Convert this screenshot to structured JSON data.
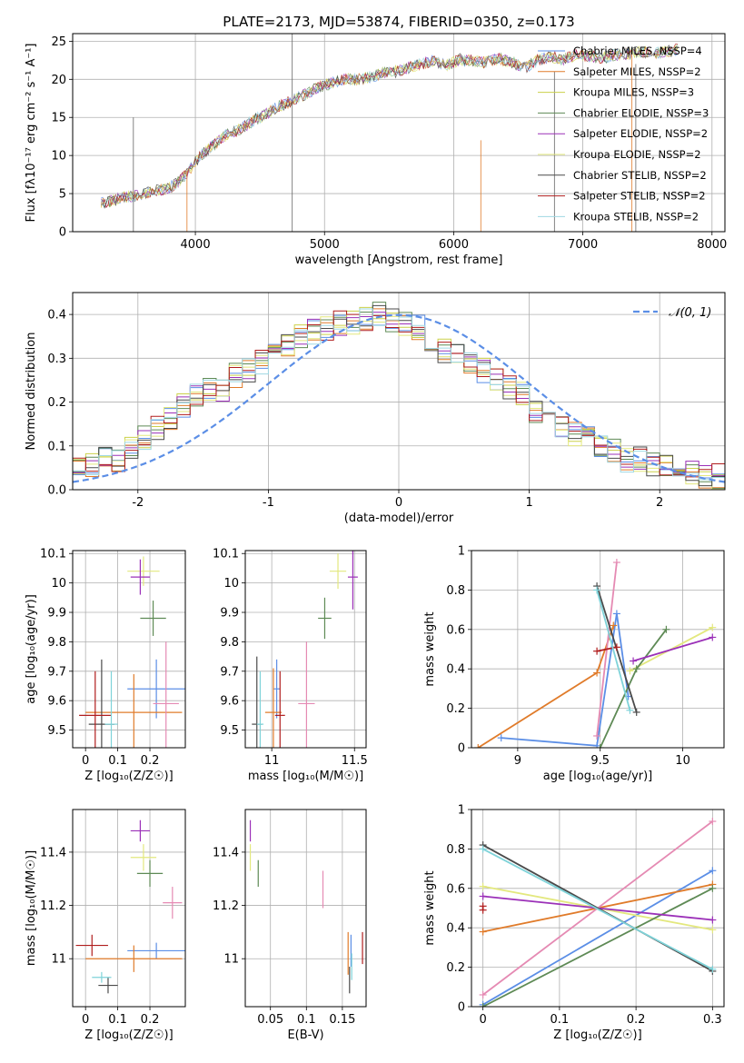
{
  "colors": {
    "c1": "#5b8ee6",
    "c2": "#e07b2a",
    "c3": "#ccd14a",
    "c4": "#5e8a55",
    "c5": "#9b30b8",
    "c6": "#e3e87e",
    "c7": "#4a4a4a",
    "c8": "#b01d1d",
    "c9": "#9fd8e3",
    "c_pink": "#e58ab3",
    "c_cyan": "#7fd3d9",
    "normal": "#5b8ee6"
  },
  "chart_data": [
    {
      "id": "spectrum",
      "type": "line",
      "title": "PLATE=2173, MJD=53874, FIBERID=0350, z=0.173",
      "xlabel": "wavelength [Angstrom, rest frame]",
      "ylabel": "Flux [fλ10⁻¹⁷ erg cm⁻² s⁻¹ A⁻¹]",
      "xlim": [
        3050,
        8100
      ],
      "ylim": [
        0,
        26
      ],
      "xticks": [
        4000,
        5000,
        6000,
        7000,
        8000
      ],
      "yticks": [
        0,
        5,
        10,
        15,
        20,
        25
      ],
      "legend_position": "top-right",
      "legend": [
        "Chabrier MILES, N_SSP=4",
        "Salpeter MILES, N_SSP=2",
        "Kroupa MILES, N_SSP=3",
        "Chabrier ELODIE, N_SSP=3",
        "Salpeter ELODIE, N_SSP=2",
        "Kroupa ELODIE, N_SSP=2",
        "Chabrier STELIB, N_SSP=2",
        "Salpeter STELIB, N_SSP=2",
        "Kroupa STELIB, N_SSP=2"
      ],
      "x": [
        3270,
        3350,
        3450,
        3550,
        3650,
        3750,
        3850,
        3950,
        4050,
        4150,
        4250,
        4350,
        4450,
        4550,
        4650,
        4750,
        4850,
        4950,
        5050,
        5150,
        5250,
        5350,
        5450,
        5550,
        5650,
        5750,
        5850,
        5950,
        6050,
        6150,
        6250,
        6350,
        6450,
        6550,
        6650,
        6750,
        6850,
        6950,
        7050,
        7150,
        7250,
        7350,
        7450,
        7550,
        7650,
        7750
      ],
      "y": [
        3.8,
        4.0,
        4.5,
        4.8,
        5.3,
        5.5,
        6.2,
        8.0,
        10.2,
        11.5,
        12.8,
        13.5,
        14.6,
        15.5,
        16.5,
        17.2,
        18.0,
        19.0,
        19.5,
        20.0,
        20.0,
        20.3,
        20.8,
        21.0,
        21.5,
        22.0,
        22.5,
        21.8,
        22.6,
        22.4,
        22.2,
        22.7,
        22.3,
        21.5,
        22.5,
        23.0,
        22.6,
        23.2,
        23.0,
        22.8,
        23.2,
        23.4,
        23.6,
        23.4,
        23.6,
        24.0
      ]
    },
    {
      "id": "residuals",
      "type": "line",
      "xlabel": "(data-model)/error",
      "ylabel": "Normed distribution",
      "xlim": [
        -2.5,
        2.5
      ],
      "ylim": [
        0,
        0.45
      ],
      "xticks": [
        -2,
        -1,
        0,
        1,
        2
      ],
      "yticks": [
        0.0,
        0.1,
        0.2,
        0.3,
        0.4
      ],
      "legend_position": "top-right",
      "legend": [
        "𝒩(0, 1)"
      ],
      "x": [
        -2.45,
        -2.35,
        -2.25,
        -2.15,
        -2.05,
        -1.95,
        -1.85,
        -1.75,
        -1.65,
        -1.55,
        -1.45,
        -1.35,
        -1.25,
        -1.15,
        -1.05,
        -0.95,
        -0.85,
        -0.75,
        -0.65,
        -0.55,
        -0.45,
        -0.35,
        -0.25,
        -0.15,
        -0.05,
        0.05,
        0.15,
        0.25,
        0.35,
        0.45,
        0.55,
        0.65,
        0.75,
        0.85,
        0.95,
        1.05,
        1.15,
        1.25,
        1.35,
        1.45,
        1.55,
        1.65,
        1.75,
        1.85,
        1.95,
        2.05,
        2.15,
        2.25,
        2.35,
        2.45
      ],
      "y": [
        0.05,
        0.06,
        0.07,
        0.07,
        0.09,
        0.12,
        0.14,
        0.16,
        0.19,
        0.22,
        0.23,
        0.23,
        0.26,
        0.27,
        0.29,
        0.31,
        0.33,
        0.35,
        0.36,
        0.37,
        0.38,
        0.38,
        0.39,
        0.4,
        0.39,
        0.38,
        0.37,
        0.34,
        0.32,
        0.31,
        0.29,
        0.27,
        0.25,
        0.23,
        0.22,
        0.18,
        0.17,
        0.15,
        0.13,
        0.12,
        0.1,
        0.09,
        0.07,
        0.07,
        0.06,
        0.05,
        0.05,
        0.04,
        0.03,
        0.03
      ]
    },
    {
      "id": "age_vs_Z",
      "type": "scatter",
      "xlabel": "Z [log₁₀(Z/Z☉)]",
      "ylabel": "age  [log₁₀(age/yr)]",
      "xlim": [
        -0.04,
        0.31
      ],
      "ylim": [
        9.44,
        10.11
      ],
      "xticks": [
        0.0,
        0.1,
        0.2
      ],
      "yticks": [
        9.5,
        9.6,
        9.7,
        9.8,
        9.9,
        10.0,
        10.1
      ],
      "points": [
        {
          "x": 0.22,
          "y": 9.64,
          "xerr": 0.09,
          "yerr": 0.1,
          "c": "c1"
        },
        {
          "x": 0.15,
          "y": 9.56,
          "xerr": 0.15,
          "yerr": 0.13,
          "c": "c2"
        },
        {
          "x": 0.18,
          "y": 10.04,
          "xerr": 0.05,
          "yerr": 0.05,
          "c": "c6"
        },
        {
          "x": 0.21,
          "y": 9.88,
          "xerr": 0.04,
          "yerr": 0.06,
          "c": "c4"
        },
        {
          "x": 0.17,
          "y": 10.02,
          "xerr": 0.03,
          "yerr": 0.06,
          "c": "c5"
        },
        {
          "x": 0.25,
          "y": 9.59,
          "xerr": 0.04,
          "yerr": 0.21,
          "c": "c_pink"
        },
        {
          "x": 0.05,
          "y": 9.52,
          "xerr": 0.04,
          "yerr": 0.22,
          "c": "c7"
        },
        {
          "x": 0.03,
          "y": 9.55,
          "xerr": 0.05,
          "yerr": 0.15,
          "c": "c8"
        },
        {
          "x": 0.08,
          "y": 9.52,
          "xerr": 0.02,
          "yerr": 0.18,
          "c": "c_cyan"
        }
      ]
    },
    {
      "id": "age_vs_mass",
      "type": "scatter",
      "xlabel": "mass [log₁₀(M/M☉)]",
      "xlim": [
        10.84,
        11.57
      ],
      "ylim": [
        9.44,
        10.11
      ],
      "xticks": [
        11.0,
        11.5
      ],
      "yticks": [
        9.5,
        9.6,
        9.7,
        9.8,
        9.9,
        10.0,
        10.1
      ],
      "points": [
        {
          "x": 11.03,
          "y": 9.64,
          "xerr": 0.02,
          "yerr": 0.1,
          "c": "c1"
        },
        {
          "x": 11.01,
          "y": 9.56,
          "xerr": 0.05,
          "yerr": 0.15,
          "c": "c2"
        },
        {
          "x": 11.4,
          "y": 10.04,
          "xerr": 0.05,
          "yerr": 0.06,
          "c": "c6"
        },
        {
          "x": 11.32,
          "y": 9.88,
          "xerr": 0.04,
          "yerr": 0.07,
          "c": "c4"
        },
        {
          "x": 11.49,
          "y": 10.02,
          "xerr": 0.03,
          "yerr": 0.11,
          "c": "c5"
        },
        {
          "x": 11.21,
          "y": 9.59,
          "xerr": 0.05,
          "yerr": 0.21,
          "c": "c_pink"
        },
        {
          "x": 10.91,
          "y": 9.52,
          "xerr": 0.03,
          "yerr": 0.23,
          "c": "c7"
        },
        {
          "x": 11.05,
          "y": 9.55,
          "xerr": 0.03,
          "yerr": 0.15,
          "c": "c8"
        },
        {
          "x": 10.93,
          "y": 9.52,
          "xerr": 0.02,
          "yerr": 0.18,
          "c": "c_cyan"
        }
      ]
    },
    {
      "id": "weight_vs_age",
      "type": "line",
      "xlabel": "age  [log₁₀(age/yr)]",
      "ylabel": "mass weight",
      "xlim": [
        8.72,
        10.25
      ],
      "ylim": [
        0,
        1
      ],
      "xticks": [
        9.0,
        9.5,
        10.0
      ],
      "yticks": [
        0.0,
        0.2,
        0.4,
        0.6,
        0.8,
        1.0
      ],
      "series": [
        {
          "c": "c1",
          "x": [
            8.9,
            9.48,
            9.6,
            9.67
          ],
          "y": [
            0.05,
            0.01,
            0.68,
            0.26
          ]
        },
        {
          "c": "c2",
          "x": [
            8.76,
            9.48,
            9.58
          ],
          "y": [
            0.0,
            0.38,
            0.62
          ]
        },
        {
          "c": "c6",
          "x": [
            9.68,
            10.18
          ],
          "y": [
            0.39,
            0.61
          ]
        },
        {
          "c": "c4",
          "x": [
            9.5,
            9.72,
            9.9
          ],
          "y": [
            0.0,
            0.4,
            0.6
          ]
        },
        {
          "c": "c5",
          "x": [
            9.7,
            10.18
          ],
          "y": [
            0.44,
            0.56
          ]
        },
        {
          "c": "c_pink",
          "x": [
            9.48,
            9.6
          ],
          "y": [
            0.06,
            0.94
          ]
        },
        {
          "c": "c7",
          "x": [
            9.48,
            9.72
          ],
          "y": [
            0.82,
            0.18
          ]
        },
        {
          "c": "c8",
          "x": [
            9.48,
            9.6
          ],
          "y": [
            0.49,
            0.51
          ]
        },
        {
          "c": "c_cyan",
          "x": [
            9.48,
            9.68
          ],
          "y": [
            0.8,
            0.19
          ]
        }
      ]
    },
    {
      "id": "mass_vs_Z",
      "type": "scatter",
      "xlabel": "Z [log₁₀(Z/Z☉)]",
      "ylabel": "mass [log₁₀(M/M☉)]",
      "xlim": [
        -0.04,
        0.31
      ],
      "ylim": [
        10.82,
        11.56
      ],
      "xticks": [
        0.0,
        0.1,
        0.2
      ],
      "yticks": [
        11.0,
        11.2,
        11.4
      ],
      "points": [
        {
          "x": 0.22,
          "y": 11.03,
          "xerr": 0.09,
          "yerr": 0.03,
          "c": "c1"
        },
        {
          "x": 0.15,
          "y": 11.0,
          "xerr": 0.15,
          "yerr": 0.05,
          "c": "c2"
        },
        {
          "x": 0.18,
          "y": 11.38,
          "xerr": 0.04,
          "yerr": 0.05,
          "c": "c6"
        },
        {
          "x": 0.2,
          "y": 11.32,
          "xerr": 0.04,
          "yerr": 0.05,
          "c": "c4"
        },
        {
          "x": 0.17,
          "y": 11.48,
          "xerr": 0.03,
          "yerr": 0.04,
          "c": "c5"
        },
        {
          "x": 0.27,
          "y": 11.21,
          "xerr": 0.03,
          "yerr": 0.06,
          "c": "c_pink"
        },
        {
          "x": 0.07,
          "y": 10.9,
          "xerr": 0.03,
          "yerr": 0.03,
          "c": "c7"
        },
        {
          "x": 0.02,
          "y": 11.05,
          "xerr": 0.05,
          "yerr": 0.04,
          "c": "c8"
        },
        {
          "x": 0.05,
          "y": 10.93,
          "xerr": 0.03,
          "yerr": 0.02,
          "c": "c_cyan"
        }
      ]
    },
    {
      "id": "mass_vs_ebv",
      "type": "scatter",
      "xlabel": "E(B-V)",
      "xlim": [
        0.015,
        0.183
      ],
      "ylim": [
        10.82,
        11.56
      ],
      "xticks": [
        0.05,
        0.1,
        0.15
      ],
      "yticks": [
        11.0,
        11.2,
        11.4
      ],
      "points": [
        {
          "x": 0.162,
          "y": 11.03,
          "xerr": 0.0,
          "yerr": 0.06,
          "c": "c1"
        },
        {
          "x": 0.158,
          "y": 11.02,
          "xerr": 0.0,
          "yerr": 0.08,
          "c": "c2"
        },
        {
          "x": 0.022,
          "y": 11.38,
          "xerr": 0.0,
          "yerr": 0.05,
          "c": "c6"
        },
        {
          "x": 0.033,
          "y": 11.32,
          "xerr": 0.0,
          "yerr": 0.05,
          "c": "c4"
        },
        {
          "x": 0.022,
          "y": 11.48,
          "xerr": 0.0,
          "yerr": 0.04,
          "c": "c5"
        },
        {
          "x": 0.123,
          "y": 11.26,
          "xerr": 0.0,
          "yerr": 0.07,
          "c": "c_pink"
        },
        {
          "x": 0.16,
          "y": 10.92,
          "xerr": 0.0,
          "yerr": 0.05,
          "c": "c7"
        },
        {
          "x": 0.178,
          "y": 11.04,
          "xerr": 0.0,
          "yerr": 0.06,
          "c": "c8"
        },
        {
          "x": 0.163,
          "y": 10.97,
          "xerr": 0.0,
          "yerr": 0.05,
          "c": "c_cyan"
        }
      ]
    },
    {
      "id": "weight_vs_Z",
      "type": "line",
      "xlabel": "Z [log₁₀(Z/Z☉)]",
      "ylabel": "mass weight",
      "xlim": [
        -0.015,
        0.315
      ],
      "ylim": [
        0,
        1
      ],
      "xticks": [
        0.0,
        0.1,
        0.2,
        0.3
      ],
      "yticks": [
        0.0,
        0.2,
        0.4,
        0.6,
        0.8,
        1.0
      ],
      "series": [
        {
          "c": "c1",
          "x": [
            0.0,
            0.3
          ],
          "y": [
            0.01,
            0.69
          ]
        },
        {
          "c": "c2",
          "x": [
            0.0,
            0.3
          ],
          "y": [
            0.38,
            0.62
          ]
        },
        {
          "c": "c6",
          "x": [
            0.0,
            0.3
          ],
          "y": [
            0.61,
            0.39
          ]
        },
        {
          "c": "c4",
          "x": [
            0.0,
            0.3
          ],
          "y": [
            0.0,
            0.6
          ]
        },
        {
          "c": "c5",
          "x": [
            0.0,
            0.3
          ],
          "y": [
            0.56,
            0.44
          ]
        },
        {
          "c": "c_pink",
          "x": [
            0.0,
            0.3
          ],
          "y": [
            0.06,
            0.94
          ]
        },
        {
          "c": "c7",
          "x": [
            0.0,
            0.3
          ],
          "y": [
            0.82,
            0.18
          ]
        },
        {
          "c": "c8",
          "x": [
            0.0,
            0.0
          ],
          "y": [
            0.49,
            0.51
          ]
        },
        {
          "c": "c_cyan",
          "x": [
            0.0,
            0.3
          ],
          "y": [
            0.8,
            0.19
          ]
        }
      ]
    }
  ]
}
